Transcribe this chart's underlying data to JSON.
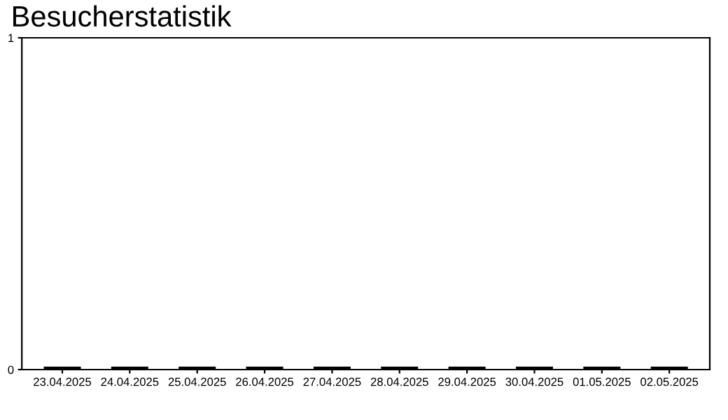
{
  "chart_data": {
    "type": "bar",
    "title": "Besucherstatistik",
    "categories": [
      "23.04.2025",
      "24.04.2025",
      "25.04.2025",
      "26.04.2025",
      "27.04.2025",
      "28.04.2025",
      "29.04.2025",
      "30.04.2025",
      "01.05.2025",
      "02.05.2025"
    ],
    "values": [
      0,
      0,
      0,
      0,
      0,
      0,
      0,
      0,
      0,
      0
    ],
    "color": "#000000",
    "ylim": [
      0,
      1
    ],
    "yticks": [
      0,
      1
    ],
    "grid": false,
    "legend": false
  }
}
